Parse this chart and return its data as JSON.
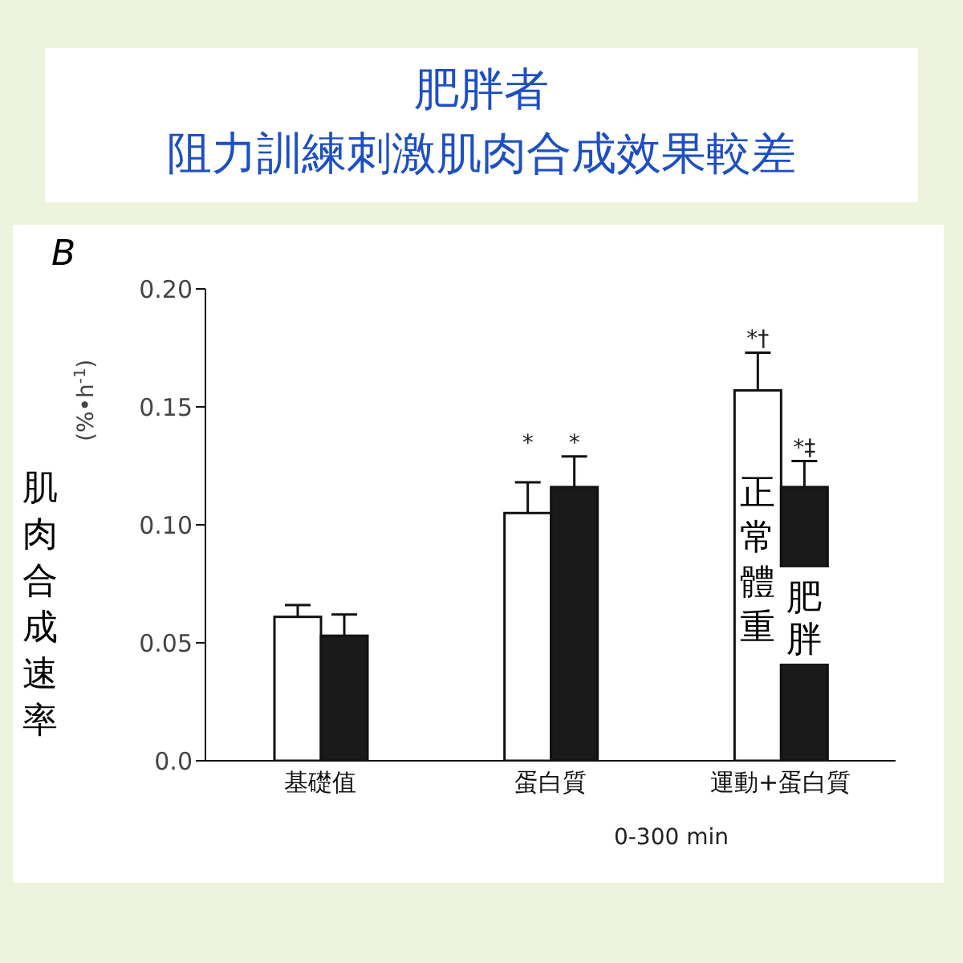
{
  "chart_data": {
    "type": "bar",
    "title": "肥胖者",
    "subtitle": "阻力訓練刺激肌肉合成效果較差",
    "ylabel": "肌肉合成速率",
    "xlabel": "0-300 min",
    "annotations": [
      "B",
      "(%•h$^{-1}$)"
    ],
    "categories": [
      "基礎值",
      "蛋白質",
      "運動+蛋白質"
    ],
    "series": [
      {
        "name": "正常體重",
        "color": "#ffffff",
        "values": [
          0.061,
          0.105,
          0.157
        ],
        "errors": [
          0.005,
          0.013,
          0.016
        ],
        "value_labels": [
          null,
          "*",
          "*†"
        ]
      },
      {
        "name": "肥胖",
        "color": "#1a1a1a",
        "values": [
          0.053,
          0.116,
          0.116
        ],
        "errors": [
          0.009,
          0.013,
          0.011
        ],
        "value_labels": [
          null,
          "*",
          "*‡"
        ]
      }
    ],
    "ylim": [
      0,
      0.2
    ],
    "yticks": [
      {
        "value": 0,
        "label": "0.0"
      },
      0.05,
      {
        "value": 0.1,
        "label": "0.10"
      },
      0.15,
      {
        "value": 0.2,
        "label": "0.20"
      }
    ],
    "grid": false,
    "legend": false
  }
}
